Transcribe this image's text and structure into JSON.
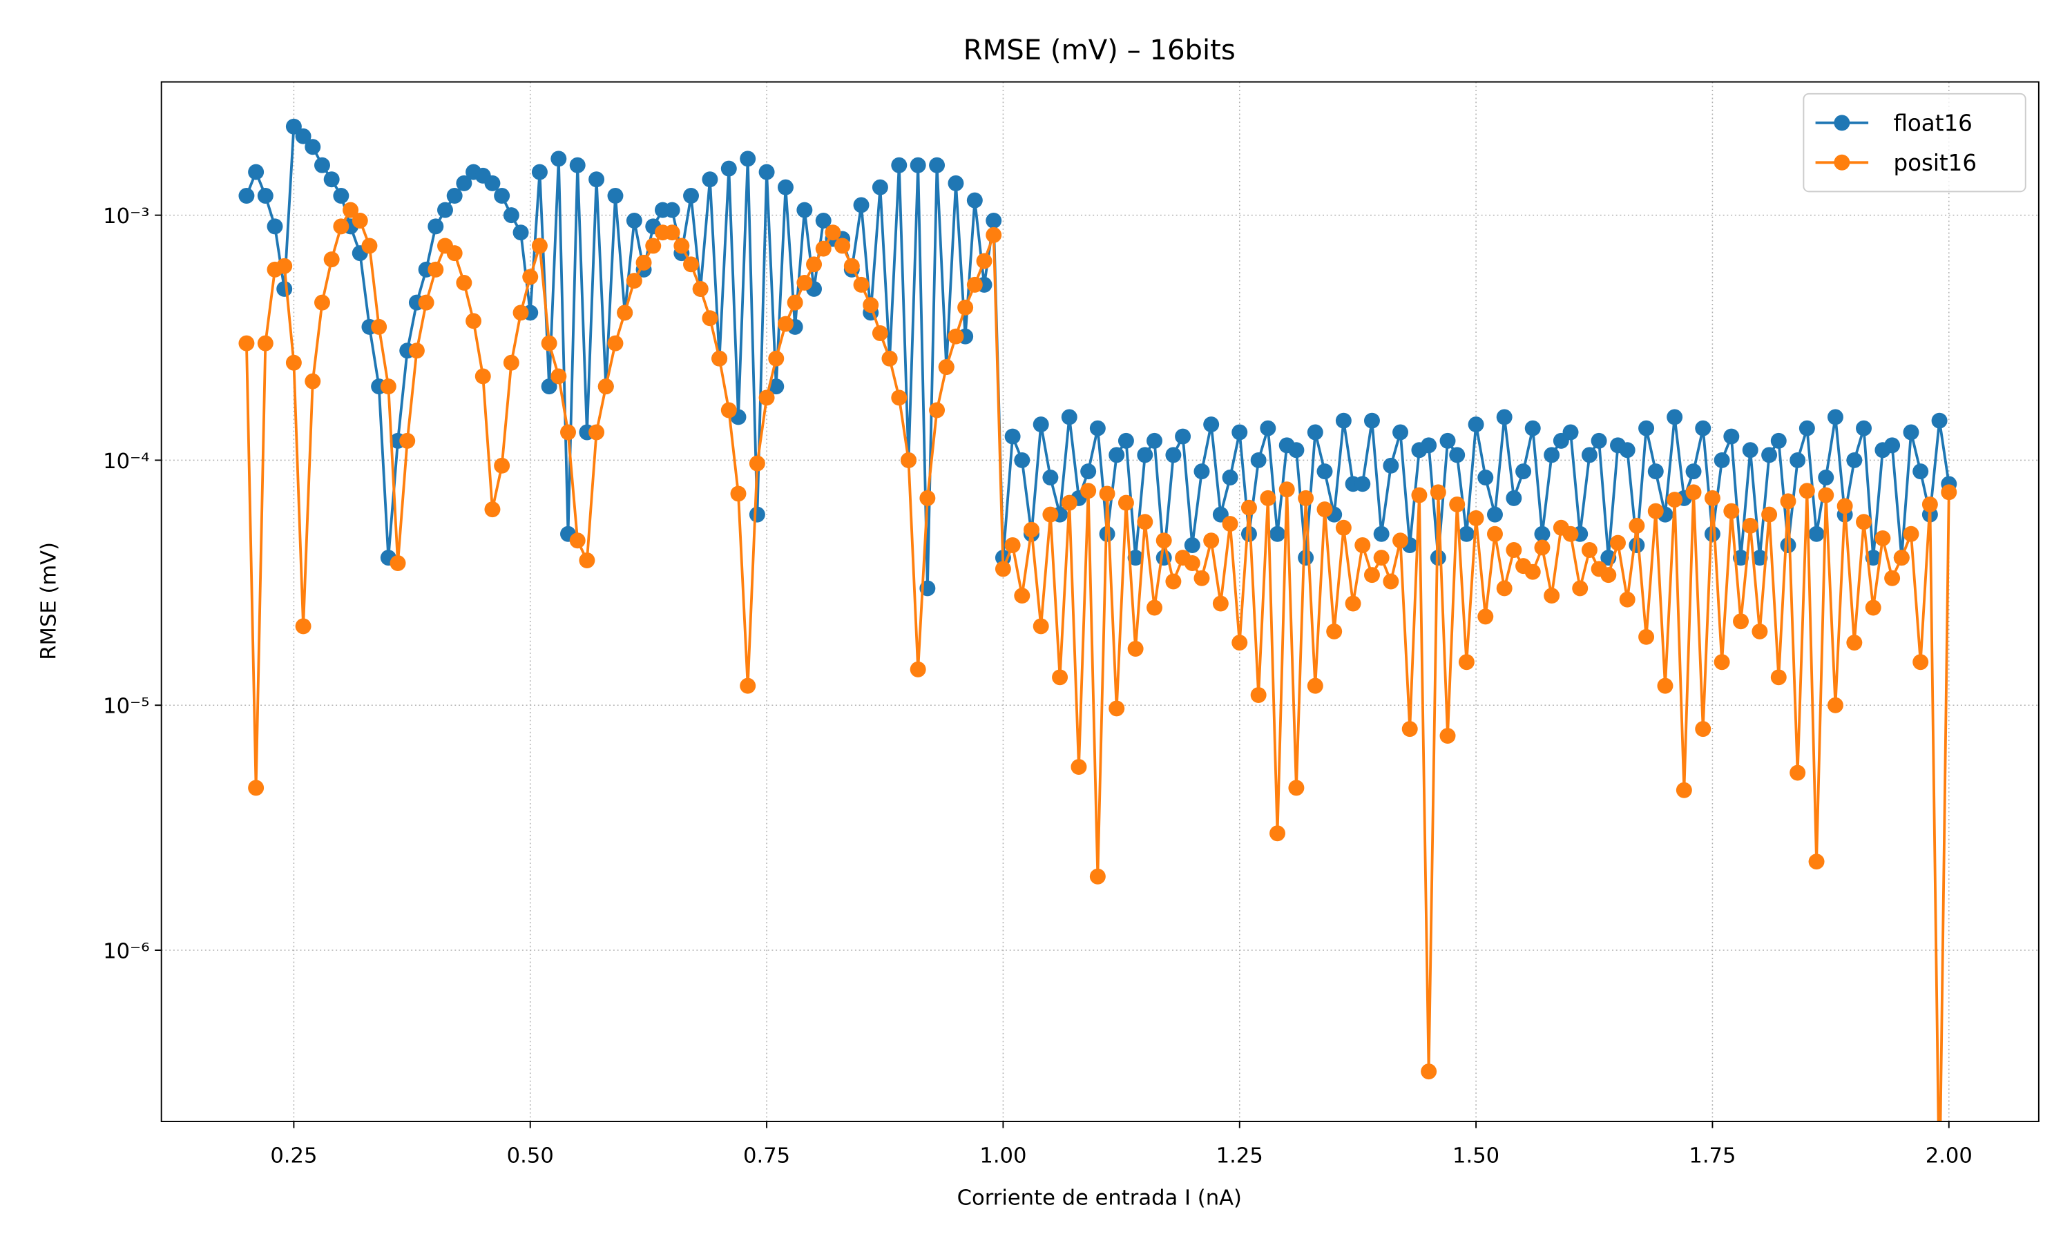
{
  "chart_data": {
    "type": "line",
    "title": "RMSE (mV) – 16bits",
    "x_label": "Corriente de entrada I (nA)",
    "y_label": "RMSE (mV)",
    "y_scale": "log",
    "grid": true,
    "legend": "upper right",
    "marker": "circle",
    "xlim": [
      0.11,
      2.095
    ],
    "ylim": [
      2e-07,
      0.0035
    ],
    "xticks": [
      0.25,
      {
        "value": 0.5,
        "label": "0.50"
      },
      0.75,
      {
        "value": 1.0,
        "label": "1.00"
      },
      1.25,
      {
        "value": 1.5,
        "label": "1.50"
      },
      1.75,
      {
        "value": 2.0,
        "label": "2.00"
      }
    ],
    "yticks": [
      {
        "value": 1e-06,
        "label": "10⁻⁶"
      },
      {
        "value": 1e-05,
        "label": "10⁻⁵"
      },
      {
        "value": 0.0001,
        "label": "10⁻⁴"
      },
      {
        "value": 0.001,
        "label": "10⁻³"
      }
    ],
    "x": [
      0.2,
      0.21,
      0.22,
      0.23,
      0.24,
      0.25,
      0.26,
      0.27,
      0.28,
      0.29,
      0.3,
      0.31,
      0.32,
      0.33,
      0.34,
      0.35,
      0.36,
      0.37,
      0.38,
      0.39,
      0.4,
      0.41,
      0.42,
      0.43,
      0.44,
      0.45,
      0.46,
      0.47,
      0.48,
      0.49,
      0.5,
      0.51,
      0.52,
      0.53,
      0.54,
      0.55,
      0.56,
      0.57,
      0.58,
      0.59,
      0.6,
      0.61,
      0.62,
      0.63,
      0.64,
      0.65,
      0.66,
      0.67,
      0.68,
      0.69,
      0.7,
      0.71,
      0.72,
      0.73,
      0.74,
      0.75,
      0.76,
      0.77,
      0.78,
      0.79,
      0.8,
      0.81,
      0.82,
      0.83,
      0.84,
      0.85,
      0.86,
      0.87,
      0.88,
      0.89,
      0.9,
      0.91,
      0.92,
      0.93,
      0.94,
      0.95,
      0.96,
      0.97,
      0.98,
      0.99,
      1.0,
      1.01,
      1.02,
      1.03,
      1.04,
      1.05,
      1.06,
      1.07,
      1.08,
      1.09,
      1.1,
      1.11,
      1.12,
      1.13,
      1.14,
      1.15,
      1.16,
      1.17,
      1.18,
      1.19,
      1.2,
      1.21,
      1.22,
      1.23,
      1.24,
      1.25,
      1.26,
      1.27,
      1.28,
      1.29,
      1.3,
      1.31,
      1.32,
      1.33,
      1.34,
      1.35,
      1.36,
      1.37,
      1.38,
      1.39,
      1.4,
      1.41,
      1.42,
      1.43,
      1.44,
      1.45,
      1.46,
      1.47,
      1.48,
      1.49,
      1.5,
      1.51,
      1.52,
      1.53,
      1.54,
      1.55,
      1.56,
      1.57,
      1.58,
      1.59,
      1.6,
      1.61,
      1.62,
      1.63,
      1.64,
      1.65,
      1.66,
      1.67,
      1.68,
      1.69,
      1.7,
      1.71,
      1.72,
      1.73,
      1.74,
      1.75,
      1.76,
      1.77,
      1.78,
      1.79,
      1.8,
      1.81,
      1.82,
      1.83,
      1.84,
      1.85,
      1.86,
      1.87,
      1.88,
      1.89,
      1.9,
      1.91,
      1.92,
      1.93,
      1.94,
      1.95,
      1.96,
      1.97,
      1.98,
      1.99,
      2.0
    ],
    "series": [
      {
        "name": "float16",
        "color": "#1f77b4",
        "values": [
          0.0012,
          0.0015,
          0.0012,
          0.0009,
          0.0005,
          0.0023,
          0.0021,
          0.0019,
          0.0016,
          0.0014,
          0.0012,
          0.0009,
          0.0007,
          0.00035,
          0.0002,
          4e-05,
          0.00012,
          0.00028,
          0.00044,
          0.0006,
          0.0009,
          0.00105,
          0.0012,
          0.00135,
          0.0015,
          0.00145,
          0.00135,
          0.0012,
          0.001,
          0.00085,
          0.0004,
          0.0015,
          0.0002,
          0.0017,
          5e-05,
          0.0016,
          0.00013,
          0.0014,
          0.0002,
          0.0012,
          0.0004,
          0.00095,
          0.0006,
          0.0009,
          0.00105,
          0.00105,
          0.0007,
          0.0012,
          0.0005,
          0.0014,
          0.00026,
          0.00155,
          0.00015,
          0.0017,
          6e-05,
          0.0015,
          0.0002,
          0.0013,
          0.00035,
          0.00105,
          0.0005,
          0.00095,
          0.0008,
          0.0008,
          0.0006,
          0.0011,
          0.0004,
          0.0013,
          0.00026,
          0.0016,
          0.0001,
          0.0016,
          3e-05,
          0.0016,
          0.00024,
          0.00135,
          0.00032,
          0.00115,
          0.00052,
          0.00095,
          4e-05,
          0.000125,
          0.0001,
          5e-05,
          0.00014,
          8.5e-05,
          6e-05,
          0.00015,
          7e-05,
          9e-05,
          0.000135,
          5e-05,
          0.000105,
          0.00012,
          4e-05,
          0.000105,
          0.00012,
          4e-05,
          0.000105,
          0.000125,
          4.5e-05,
          9e-05,
          0.00014,
          6e-05,
          8.5e-05,
          0.00013,
          5e-05,
          0.0001,
          0.000135,
          5e-05,
          0.000115,
          0.00011,
          4e-05,
          0.00013,
          9e-05,
          6e-05,
          0.000145,
          8e-05,
          8e-05,
          0.000145,
          5e-05,
          9.5e-05,
          0.00013,
          4.5e-05,
          0.00011,
          0.000115,
          4e-05,
          0.00012,
          0.000105,
          5e-05,
          0.00014,
          8.5e-05,
          6e-05,
          0.00015,
          7e-05,
          9e-05,
          0.000135,
          5e-05,
          0.000105,
          0.00012,
          0.00013,
          5e-05,
          0.000105,
          0.00012,
          4e-05,
          0.000115,
          0.00011,
          4.5e-05,
          0.000135,
          9e-05,
          6e-05,
          0.00015,
          7e-05,
          9e-05,
          0.000135,
          5e-05,
          0.0001,
          0.000125,
          4e-05,
          0.00011,
          4e-05,
          0.000105,
          0.00012,
          4.5e-05,
          0.0001,
          0.000135,
          5e-05,
          8.5e-05,
          0.00015,
          6e-05,
          0.0001,
          0.000135,
          4e-05,
          0.00011,
          0.000115,
          4e-05,
          0.00013,
          9e-05,
          6e-05,
          0.000145,
          8e-05
        ]
      },
      {
        "name": "posit16",
        "color": "#ff7f0e",
        "values": [
          0.0003,
          4.6e-06,
          0.0003,
          0.0006,
          0.00062,
          0.00025,
          2.1e-05,
          0.00021,
          0.00044,
          0.00066,
          0.0009,
          0.00105,
          0.00095,
          0.00075,
          0.00035,
          0.0002,
          3.8e-05,
          0.00012,
          0.00028,
          0.00044,
          0.0006,
          0.00075,
          0.0007,
          0.00053,
          0.00037,
          0.00022,
          6.3e-05,
          9.5e-05,
          0.00025,
          0.0004,
          0.00056,
          0.00075,
          0.0003,
          0.00022,
          0.00013,
          4.7e-05,
          3.9e-05,
          0.00013,
          0.0002,
          0.0003,
          0.0004,
          0.00054,
          0.00064,
          0.00075,
          0.00085,
          0.00085,
          0.00075,
          0.00063,
          0.0005,
          0.00038,
          0.00026,
          0.00016,
          7.3e-05,
          1.2e-05,
          9.7e-05,
          0.00018,
          0.00026,
          0.00036,
          0.00044,
          0.00053,
          0.00063,
          0.00073,
          0.00085,
          0.00075,
          0.00062,
          0.00052,
          0.00043,
          0.00033,
          0.00026,
          0.00018,
          0.0001,
          1.4e-05,
          7e-05,
          0.00016,
          0.00024,
          0.00032,
          0.00042,
          0.00052,
          0.00065,
          0.00083,
          3.6e-05,
          4.5e-05,
          2.8e-05,
          5.2e-05,
          2.1e-05,
          6e-05,
          1.3e-05,
          6.7e-05,
          5.6e-06,
          7.5e-05,
          2e-06,
          7.3e-05,
          9.7e-06,
          6.7e-05,
          1.7e-05,
          5.6e-05,
          2.5e-05,
          4.7e-05,
          3.2e-05,
          4e-05,
          3.8e-05,
          3.3e-05,
          4.7e-05,
          2.6e-05,
          5.5e-05,
          1.8e-05,
          6.4e-05,
          1.1e-05,
          7e-05,
          3e-06,
          7.6e-05,
          4.6e-06,
          7e-05,
          1.2e-05,
          6.3e-05,
          2e-05,
          5.3e-05,
          2.6e-05,
          4.5e-05,
          3.4e-05,
          4e-05,
          3.2e-05,
          4.7e-05,
          8e-06,
          7.2e-05,
          3.2e-07,
          7.4e-05,
          7.5e-06,
          6.6e-05,
          1.5e-05,
          5.8e-05,
          2.3e-05,
          5e-05,
          3e-05,
          4.3e-05,
          3.7e-05,
          3.5e-05,
          4.4e-05,
          2.8e-05,
          5.3e-05,
          5e-05,
          3e-05,
          4.3e-05,
          3.6e-05,
          3.4e-05,
          4.6e-05,
          2.7e-05,
          5.4e-05,
          1.9e-05,
          6.2e-05,
          1.2e-05,
          6.9e-05,
          4.5e-06,
          7.4e-05,
          8e-06,
          7e-05,
          1.5e-05,
          6.2e-05,
          2.2e-05,
          5.4e-05,
          2e-05,
          6e-05,
          1.3e-05,
          6.8e-05,
          5.3e-06,
          7.5e-05,
          2.3e-06,
          7.2e-05,
          1e-05,
          6.5e-05,
          1.8e-05,
          5.6e-05,
          2.5e-05,
          4.8e-05,
          3.3e-05,
          4e-05,
          5e-05,
          1.5e-05,
          6.6e-05,
          1e-07,
          7.4e-05
        ]
      }
    ]
  }
}
